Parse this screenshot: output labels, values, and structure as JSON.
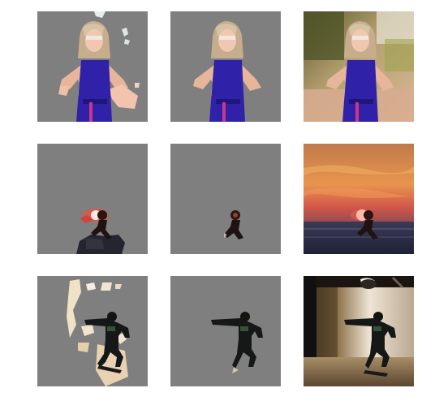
{
  "figure": {
    "rows": [
      {
        "scene": "woman-blue-dress",
        "panels": [
          {
            "kind": "segmentation-mask-noisy",
            "background_fill": "#7f7f7f"
          },
          {
            "kind": "segmentation-mask-clean",
            "background_fill": "#7f7f7f"
          },
          {
            "kind": "original-photo"
          }
        ]
      },
      {
        "scene": "sunset-skateboarder",
        "panels": [
          {
            "kind": "segmentation-mask-noisy",
            "background_fill": "#7f7f7f"
          },
          {
            "kind": "segmentation-mask-clean",
            "background_fill": "#7f7f7f"
          },
          {
            "kind": "original-photo"
          }
        ]
      },
      {
        "scene": "tunnel-skateboarder",
        "panels": [
          {
            "kind": "segmentation-mask-noisy",
            "background_fill": "#7f7f7f"
          },
          {
            "kind": "segmentation-mask-clean",
            "background_fill": "#7f7f7f"
          },
          {
            "kind": "original-photo"
          }
        ]
      }
    ]
  }
}
